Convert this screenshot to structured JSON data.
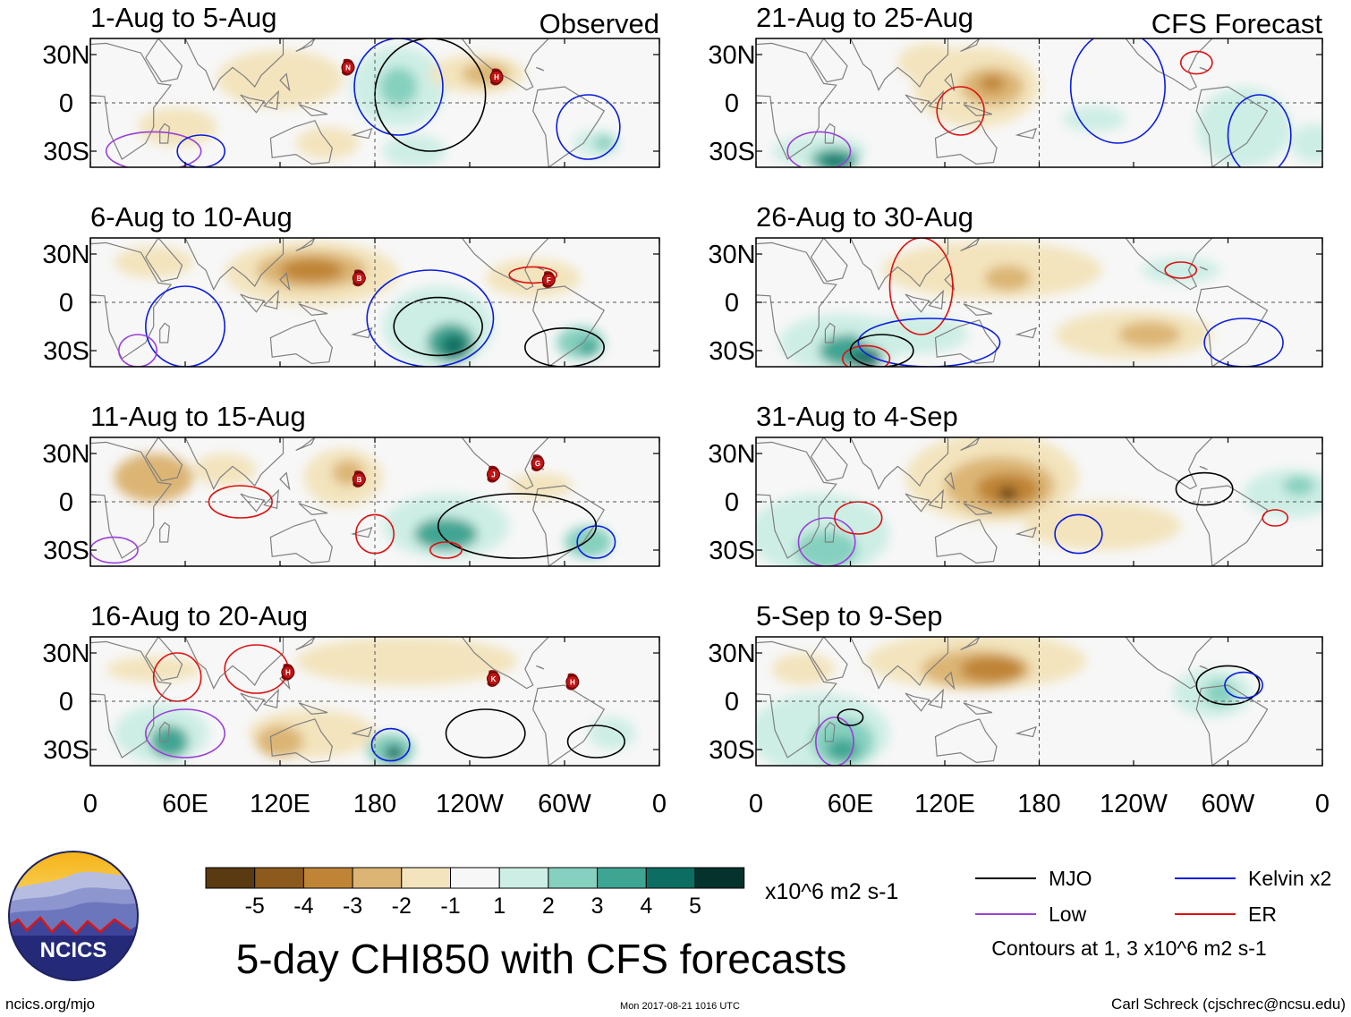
{
  "chart_data": {
    "type": "heatmap",
    "title": "5-day CHI850 with CFS forecasts",
    "units": "x10^6 m2 s-1",
    "lat_tick_labels": [
      "30N",
      "0",
      "30S"
    ],
    "lon_tick_labels": [
      "0",
      "60E",
      "120E",
      "180",
      "120W",
      "60W",
      "0"
    ],
    "colorbar": {
      "labels": [
        "-5",
        "-4",
        "-3",
        "-2",
        "-1",
        "1",
        "2",
        "3",
        "4",
        "5"
      ],
      "colors": [
        "#5a3a10",
        "#8c5a1c",
        "#bf8435",
        "#dcb574",
        "#f3e4bd",
        "#f7f7f7",
        "#cdeee5",
        "#86d0bf",
        "#3fa593",
        "#0c6e62",
        "#03332c"
      ]
    },
    "legend": {
      "entries": [
        {
          "name": "MJO",
          "color": "#000000"
        },
        {
          "name": "Kelvin x2",
          "color": "#0a1ce0"
        },
        {
          "name": "Low",
          "color": "#9a3fd9"
        },
        {
          "name": "ER",
          "color": "#dd1010"
        }
      ],
      "note": "Contours at 1, 3 x10^6 m2 s-1"
    },
    "column_tags": [
      "Observed",
      "CFS Forecast"
    ],
    "panels": [
      {
        "period": "1-Aug to 5-Aug",
        "group": "Observed",
        "storm_labels": [
          "N",
          "H"
        ]
      },
      {
        "period": "6-Aug to 10-Aug",
        "group": "Observed",
        "storm_labels": [
          "B",
          "F"
        ]
      },
      {
        "period": "11-Aug to 15-Aug",
        "group": "Observed",
        "storm_labels": [
          "B",
          "J",
          "G"
        ]
      },
      {
        "period": "16-Aug to 20-Aug",
        "group": "Observed",
        "storm_labels": [
          "H",
          "K",
          "H"
        ]
      },
      {
        "period": "21-Aug to 25-Aug",
        "group": "CFS Forecast",
        "storm_labels": []
      },
      {
        "period": "26-Aug to 30-Aug",
        "group": "CFS Forecast",
        "storm_labels": []
      },
      {
        "period": "31-Aug to 4-Sep",
        "group": "CFS Forecast",
        "storm_labels": []
      },
      {
        "period": "5-Sep to 9-Sep",
        "group": "CFS Forecast",
        "storm_labels": []
      }
    ]
  },
  "footer": {
    "logo_text": "NCICS",
    "url": "ncics.org/mjo",
    "timestamp": "Mon 2017-08-21 1016 UTC",
    "author": "Carl Schreck (cjschrec@ncsu.edu)"
  }
}
